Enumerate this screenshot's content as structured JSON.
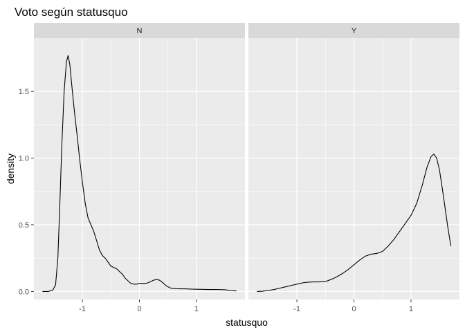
{
  "chart_data": {
    "type": "line",
    "title": "Voto según statusquo",
    "xlabel": "statusquo",
    "ylabel": "density",
    "xlim": [
      -1.85,
      1.85
    ],
    "ylim": [
      -0.06,
      1.9
    ],
    "x_ticks": [
      -1,
      0,
      1
    ],
    "x_tick_labels": [
      "-1",
      "0",
      "1"
    ],
    "y_ticks": [
      0.0,
      0.5,
      1.0,
      1.5
    ],
    "y_tick_labels": [
      "0.0",
      "0.5",
      "1.0",
      "1.5"
    ],
    "grid": true,
    "colors": {
      "panel": "#ebebeb",
      "strip": "#d9d9d9",
      "grid": "#ffffff",
      "line": "#000000"
    },
    "facets": [
      {
        "label": "N",
        "x": [
          -1.7,
          -1.6,
          -1.52,
          -1.47,
          -1.43,
          -1.4,
          -1.36,
          -1.32,
          -1.28,
          -1.25,
          -1.22,
          -1.18,
          -1.14,
          -1.1,
          -1.05,
          -1.0,
          -0.95,
          -0.9,
          -0.85,
          -0.8,
          -0.75,
          -0.7,
          -0.65,
          -0.6,
          -0.55,
          -0.5,
          -0.45,
          -0.4,
          -0.35,
          -0.3,
          -0.25,
          -0.2,
          -0.15,
          -0.1,
          -0.05,
          0.0,
          0.05,
          0.1,
          0.15,
          0.2,
          0.25,
          0.3,
          0.35,
          0.4,
          0.45,
          0.5,
          0.55,
          0.6,
          0.65,
          0.7,
          0.75,
          0.8,
          0.9,
          1.0,
          1.1,
          1.2,
          1.3,
          1.4,
          1.5,
          1.6,
          1.7
        ],
        "y": [
          0.0,
          0.0,
          0.01,
          0.05,
          0.25,
          0.6,
          1.1,
          1.5,
          1.72,
          1.77,
          1.7,
          1.52,
          1.35,
          1.2,
          1.0,
          0.82,
          0.66,
          0.55,
          0.5,
          0.45,
          0.38,
          0.31,
          0.27,
          0.25,
          0.22,
          0.19,
          0.18,
          0.17,
          0.15,
          0.13,
          0.1,
          0.08,
          0.06,
          0.055,
          0.055,
          0.06,
          0.06,
          0.06,
          0.065,
          0.075,
          0.085,
          0.09,
          0.085,
          0.07,
          0.05,
          0.035,
          0.025,
          0.022,
          0.021,
          0.02,
          0.02,
          0.02,
          0.018,
          0.017,
          0.016,
          0.015,
          0.015,
          0.014,
          0.013,
          0.008,
          0.004
        ]
      },
      {
        "label": "Y",
        "x": [
          -1.7,
          -1.6,
          -1.5,
          -1.4,
          -1.3,
          -1.2,
          -1.1,
          -1.0,
          -0.9,
          -0.8,
          -0.7,
          -0.6,
          -0.5,
          -0.4,
          -0.3,
          -0.2,
          -0.1,
          0.0,
          0.1,
          0.2,
          0.3,
          0.4,
          0.5,
          0.6,
          0.7,
          0.8,
          0.9,
          1.0,
          1.1,
          1.2,
          1.28,
          1.35,
          1.4,
          1.45,
          1.5,
          1.55,
          1.6,
          1.65,
          1.7
        ],
        "y": [
          0.0,
          0.002,
          0.008,
          0.015,
          0.025,
          0.035,
          0.045,
          0.055,
          0.065,
          0.07,
          0.072,
          0.072,
          0.075,
          0.09,
          0.11,
          0.135,
          0.165,
          0.2,
          0.235,
          0.265,
          0.28,
          0.285,
          0.3,
          0.34,
          0.39,
          0.45,
          0.51,
          0.57,
          0.66,
          0.8,
          0.93,
          1.01,
          1.03,
          1.0,
          0.91,
          0.77,
          0.62,
          0.47,
          0.34
        ]
      }
    ]
  }
}
